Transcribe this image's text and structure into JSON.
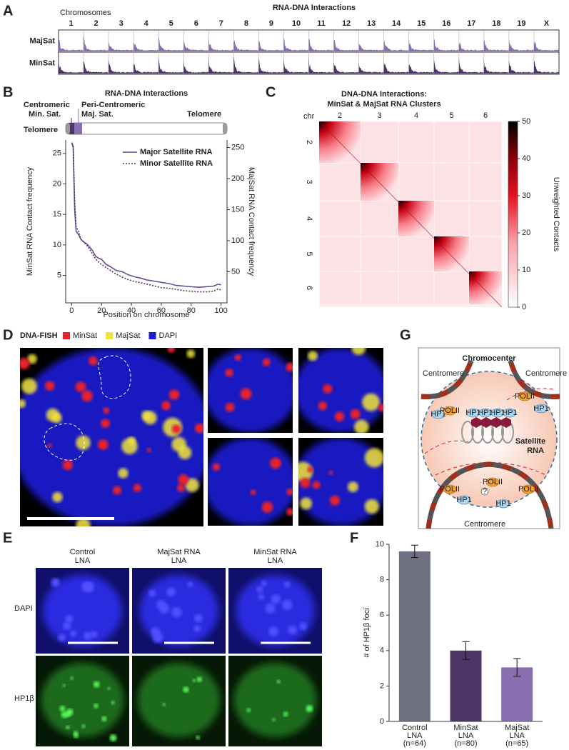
{
  "panels": {
    "A": {
      "label": "A",
      "title": "RNA-DNA Interactions",
      "axis_label": "Chromosomes",
      "chromosomes": [
        "1",
        "2",
        "3",
        "4",
        "5",
        "6",
        "7",
        "8",
        "9",
        "10",
        "11",
        "12",
        "13",
        "14",
        "15",
        "16",
        "17",
        "18",
        "19",
        "X"
      ],
      "tracks": [
        {
          "name": "MajSat",
          "color": "#8a6fb0"
        },
        {
          "name": "MinSat",
          "color": "#4e3566"
        }
      ]
    },
    "B": {
      "label": "B",
      "centromeric": [
        "Centromeric",
        "Min. Sat."
      ],
      "peri_centromeric": [
        "Peri-Centromeric",
        "Maj. Sat."
      ],
      "telomere": "Telomere"
    },
    "C": {
      "label": "C"
    },
    "D": {
      "label": "D",
      "title": "DNA-FISH",
      "legend": [
        {
          "name": "MinSat",
          "color": "#e8202a"
        },
        {
          "name": "MajSat",
          "color": "#f2e43a"
        },
        {
          "name": "DAPI",
          "color": "#1a1ad8"
        }
      ]
    },
    "E": {
      "label": "E",
      "columns": [
        [
          "Control",
          "LNA"
        ],
        [
          "MajSat RNA",
          "LNA"
        ],
        [
          "MinSat RNA",
          "LNA"
        ]
      ],
      "rows": [
        "DAPI",
        "HP1β"
      ]
    },
    "F": {
      "label": "F"
    },
    "G": {
      "label": "G",
      "title": "Chromocenter",
      "centromere": "Centromere",
      "satellite_rna": [
        "Satellite",
        "RNA"
      ],
      "hp1": "HP1",
      "pol": "POLII",
      "unknown": "?"
    }
  },
  "chart_data": [
    {
      "type": "line",
      "title": "RNA-DNA Interactions",
      "x_label": "Position on chromosome",
      "y_label": "MinSat RNA Contact frequency",
      "y2_label": "MajSat RNA Contact frequency",
      "x": [
        0,
        1,
        2,
        3,
        4,
        5,
        6,
        8,
        10,
        12,
        14,
        16,
        18,
        20,
        23,
        26,
        30,
        34,
        38,
        42,
        46,
        50,
        55,
        60,
        65,
        70,
        75,
        80,
        85,
        90,
        95,
        98,
        100
      ],
      "xlim": [
        -4,
        104
      ],
      "xticks": [
        0,
        20,
        40,
        60,
        80,
        100
      ],
      "ylim": [
        0.5,
        27.2
      ],
      "yticks": [
        5,
        10,
        15,
        20,
        25
      ],
      "y2lim": [
        0,
        262
      ],
      "y2ticks": [
        50,
        100,
        150,
        200,
        250
      ],
      "legend": "upper right",
      "series": [
        {
          "name": "Major Satellite RNA",
          "color": "#6a4c93",
          "line_style": "solid",
          "axis": "y2",
          "values": [
            258,
            250,
            150,
            115,
            112,
            108,
            103,
            98,
            95,
            90,
            84,
            75,
            72,
            70,
            62,
            58,
            52,
            50,
            45,
            42,
            40,
            37,
            35,
            33,
            31,
            28,
            27,
            26,
            25,
            26,
            27,
            30,
            29
          ]
        },
        {
          "name": "Minor Satellite RNA",
          "color": "#4e3566",
          "line_style": "dotted",
          "values": [
            26.5,
            26.5,
            17,
            13,
            12.5,
            12,
            11,
            10.5,
            10,
            9.3,
            8.5,
            7.7,
            7.2,
            6.8,
            6.3,
            5.8,
            5.2,
            4.7,
            4.3,
            4.0,
            3.8,
            3.6,
            3.3,
            3.0,
            2.9,
            2.7,
            2.5,
            2.4,
            2.3,
            2.3,
            2.4,
            2.8,
            2.6
          ]
        }
      ]
    },
    {
      "type": "bar",
      "y_label": "# of HP1β foci",
      "categories": [
        [
          "Control",
          "LNA",
          "(n=64)"
        ],
        [
          "MinSat",
          "LNA",
          "(n=80)"
        ],
        [
          "MajSat",
          "LNA",
          "(n=65)"
        ]
      ],
      "values": [
        9.6,
        4.0,
        3.05
      ],
      "errors": [
        0.35,
        0.5,
        0.5
      ],
      "colors": [
        "#6e7082",
        "#4e3566",
        "#8a6fb0"
      ],
      "ylim": [
        0,
        10
      ],
      "yticks": [
        0,
        2,
        4,
        6,
        8,
        10
      ]
    },
    {
      "type": "heatmap",
      "title": [
        "DNA-DNA Interactions:",
        "MinSat & MajSat RNA Clusters"
      ],
      "x_label": "chr",
      "categories": [
        "2",
        "3",
        "4",
        "5",
        "6"
      ],
      "colorbar_label": "Unweighted Contacts",
      "clim": [
        0,
        50
      ],
      "cticks": [
        0,
        10,
        20,
        30,
        40,
        50
      ]
    }
  ]
}
